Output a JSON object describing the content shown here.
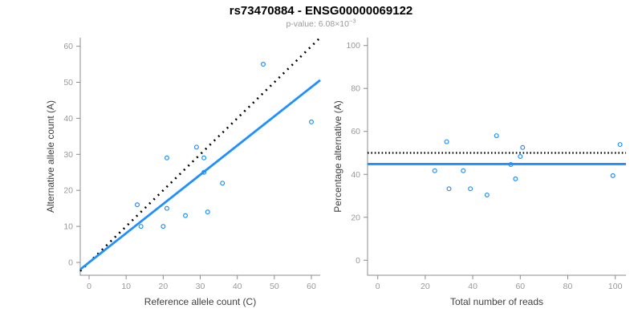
{
  "header": {
    "title": "rs73470884 - ENSG00000069122",
    "p_value_label": "p-value: ",
    "p_value_mantissa": "6.08",
    "p_value_times": "×",
    "p_value_base": "10",
    "p_value_exponent": "−3"
  },
  "colors": {
    "accent_blue": "#1E90FF",
    "dashed_black": "#000000",
    "axis_gray": "#8c8c8c",
    "tick_label_gray": "#999999",
    "axis_label_dark": "#404040",
    "subtitle_gray": "#9a9a9a"
  },
  "chart_data": [
    {
      "type": "scatter",
      "panel": "left",
      "xlabel": "Reference allele count (C)",
      "ylabel": "Alternative allele count (A)",
      "xlim": [
        0,
        60
      ],
      "ylim": [
        0,
        60
      ],
      "xticks": [
        0,
        10,
        20,
        30,
        40,
        50,
        60
      ],
      "yticks": [
        0,
        10,
        20,
        30,
        40,
        50,
        60
      ],
      "grid": false,
      "legend": null,
      "points": [
        [
          13,
          16
        ],
        [
          14,
          10
        ],
        [
          20,
          10
        ],
        [
          21,
          15
        ],
        [
          21,
          29
        ],
        [
          26,
          13
        ],
        [
          29,
          32
        ],
        [
          31,
          25
        ],
        [
          31,
          29
        ],
        [
          32,
          14
        ],
        [
          36,
          22
        ],
        [
          47,
          55
        ],
        [
          60,
          39
        ]
      ],
      "lines": [
        {
          "name": "identity-line",
          "style": "dashed",
          "slope": 1,
          "intercept": 0,
          "color": "dashed_black"
        },
        {
          "name": "fit-line",
          "style": "solid",
          "slope": 0.811,
          "intercept": 0,
          "color": "accent_blue"
        }
      ]
    },
    {
      "type": "scatter",
      "panel": "right",
      "xlabel": "Total number of reads",
      "ylabel": "Percentage alternative (A)",
      "xlim": [
        0,
        100
      ],
      "ylim": [
        0,
        100
      ],
      "xticks": [
        0,
        20,
        40,
        60,
        80,
        100
      ],
      "yticks": [
        0,
        20,
        40,
        60,
        80,
        100
      ],
      "grid": false,
      "legend": null,
      "points": [
        [
          29,
          55.2
        ],
        [
          24,
          41.7
        ],
        [
          30,
          33.3
        ],
        [
          36,
          41.7
        ],
        [
          50,
          58.0
        ],
        [
          39,
          33.3
        ],
        [
          61,
          52.5
        ],
        [
          56,
          44.6
        ],
        [
          60,
          48.3
        ],
        [
          46,
          30.4
        ],
        [
          58,
          37.9
        ],
        [
          102,
          53.9
        ],
        [
          99,
          39.4
        ]
      ],
      "lines": [
        {
          "name": "fifty-percent-line",
          "style": "dashed",
          "hline": 50,
          "color": "dashed_black"
        },
        {
          "name": "mean-percentage-line",
          "style": "solid",
          "hline": 44.8,
          "color": "accent_blue"
        }
      ]
    }
  ]
}
